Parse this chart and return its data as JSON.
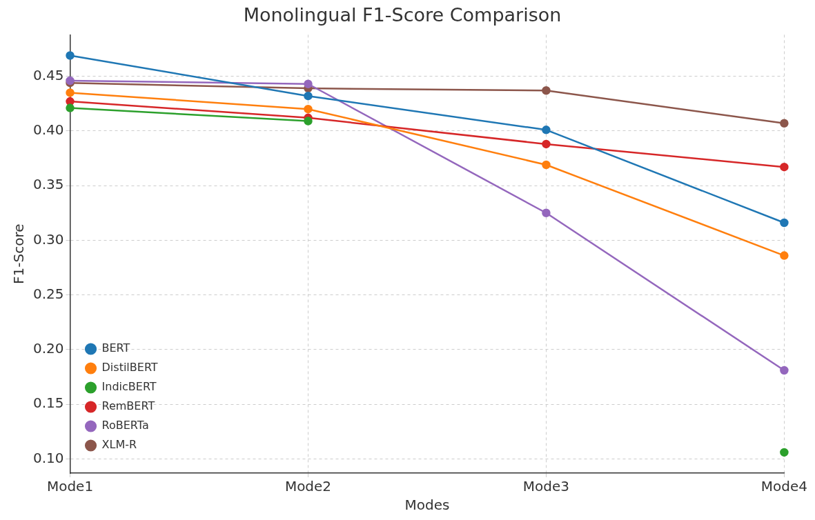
{
  "chart_data": {
    "type": "line",
    "title": "Monolingual F1-Score Comparison",
    "xlabel": "Modes",
    "ylabel": "F1-Score",
    "categories": [
      "Mode1",
      "Mode2",
      "Mode3",
      "Mode4"
    ],
    "series": [
      {
        "name": "BERT",
        "color": "#1f77b4",
        "values": [
          0.469,
          0.432,
          0.401,
          0.316
        ]
      },
      {
        "name": "DistilBERT",
        "color": "#ff7f0e",
        "values": [
          0.435,
          0.42,
          0.369,
          0.286
        ]
      },
      {
        "name": "IndicBERT",
        "color": "#2ca02c",
        "values": [
          0.421,
          0.409,
          null,
          0.106
        ]
      },
      {
        "name": "RemBERT",
        "color": "#d62728",
        "values": [
          0.427,
          0.412,
          0.388,
          0.367
        ]
      },
      {
        "name": "RoBERTa",
        "color": "#9467bd",
        "values": [
          0.446,
          0.443,
          0.325,
          0.181
        ]
      },
      {
        "name": "XLM-R",
        "color": "#8c564b",
        "values": [
          0.444,
          0.439,
          0.437,
          0.407
        ]
      }
    ],
    "ylim": [
      0.087,
      0.488
    ],
    "yticks": [
      {
        "value": 0.1,
        "label": "0.10"
      },
      {
        "value": 0.15,
        "label": "0.15"
      },
      {
        "value": 0.2,
        "label": "0.20"
      },
      {
        "value": 0.25,
        "label": "0.25"
      },
      {
        "value": 0.3,
        "label": "0.30"
      },
      {
        "value": 0.35,
        "label": "0.35"
      },
      {
        "value": 0.4,
        "label": "0.40"
      },
      {
        "value": 0.45,
        "label": "0.45"
      }
    ],
    "grid": true,
    "legend": "bottom left",
    "marker": "circle",
    "line_style": "solid"
  }
}
